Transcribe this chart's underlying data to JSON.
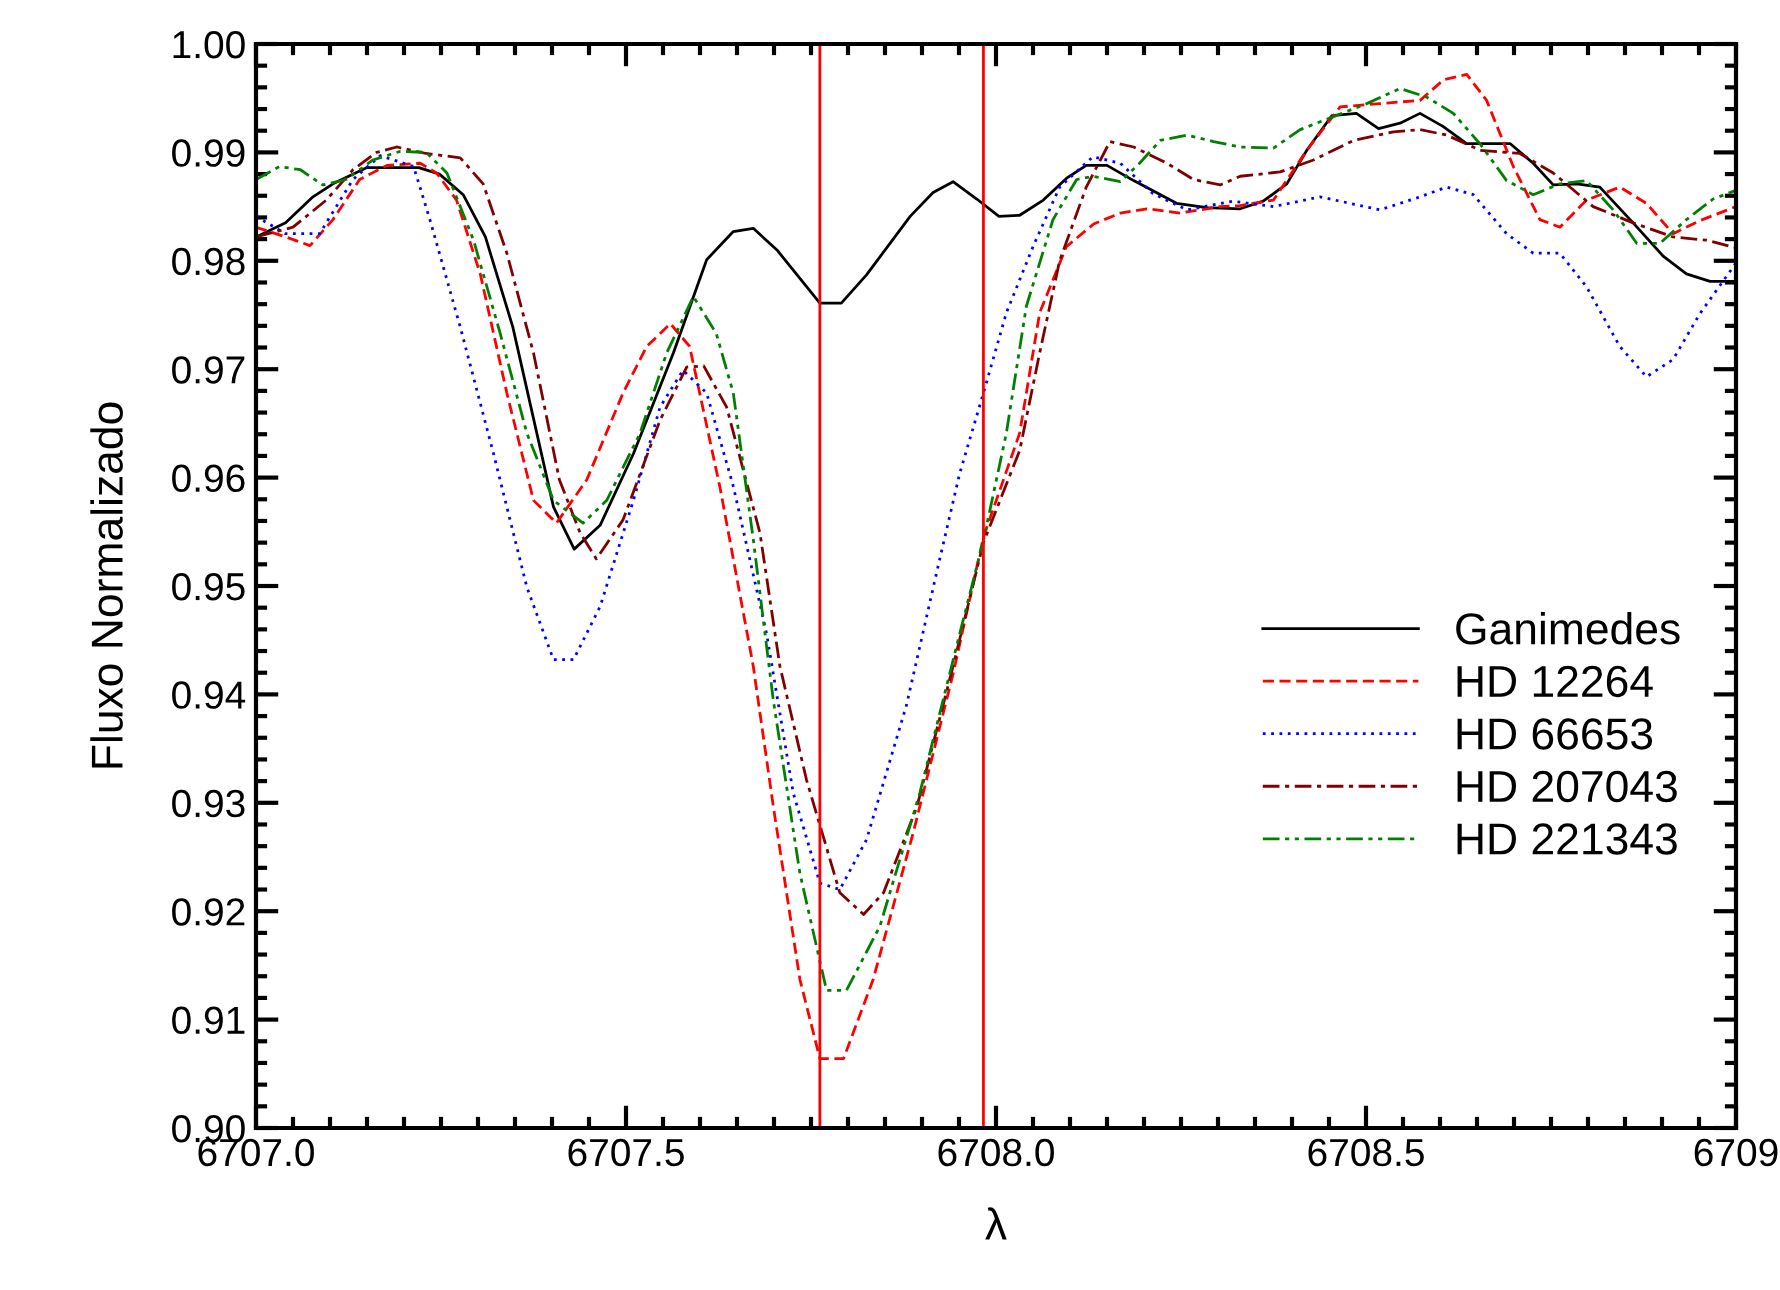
{
  "chart_data": {
    "type": "line",
    "xlabel": "λ",
    "ylabel": "Fluxo Normalizado",
    "xlim": [
      6707.0,
      6709.0
    ],
    "ylim": [
      0.9,
      1.0
    ],
    "xticks": [
      {
        "value": 6707.0,
        "label": "6707.0"
      },
      {
        "value": 6707.5,
        "label": "6707.5"
      },
      {
        "value": 6708.0,
        "label": "6708.0"
      },
      {
        "value": 6708.5,
        "label": "6708.5"
      },
      {
        "value": 6709.0,
        "label": "6709"
      }
    ],
    "yticks": [
      {
        "value": 0.9,
        "label": "0.90"
      },
      {
        "value": 0.91,
        "label": "0.91"
      },
      {
        "value": 0.92,
        "label": "0.92"
      },
      {
        "value": 0.93,
        "label": "0.93"
      },
      {
        "value": 0.94,
        "label": "0.94"
      },
      {
        "value": 0.95,
        "label": "0.95"
      },
      {
        "value": 0.96,
        "label": "0.96"
      },
      {
        "value": 0.97,
        "label": "0.97"
      },
      {
        "value": 0.98,
        "label": "0.98"
      },
      {
        "value": 0.99,
        "label": "0.99"
      },
      {
        "value": 1.0,
        "label": "1.00"
      }
    ],
    "grid": false,
    "legend": "right",
    "marker": "none",
    "ref_lines": [
      {
        "axis": "x",
        "value": 6707.762,
        "color": "#ff0000"
      },
      {
        "axis": "x",
        "value": 6707.983,
        "color": "#ff0000"
      }
    ],
    "series": [
      {
        "name": "Ganimedes",
        "color": "#000000",
        "line_style": "solid",
        "x": [
          6707.0,
          6707.04,
          6707.077,
          6707.104,
          6707.15,
          6707.22,
          6707.248,
          6707.28,
          6707.31,
          6707.347,
          6707.402,
          6707.43,
          6707.465,
          6707.51,
          6707.564,
          6707.609,
          6707.645,
          6707.672,
          6707.704,
          6707.762,
          6707.791,
          6707.825,
          6707.884,
          6707.915,
          6707.942,
          6707.974,
          6708.004,
          6708.032,
          6708.064,
          6708.095,
          6708.122,
          6708.15,
          6708.186,
          6708.244,
          6708.285,
          6708.33,
          6708.361,
          6708.393,
          6708.42,
          6708.454,
          6708.487,
          6708.517,
          6708.546,
          6708.573,
          6708.604,
          6708.636,
          6708.695,
          6708.726,
          6708.753,
          6708.785,
          6708.816,
          6708.861,
          6708.902,
          6708.933,
          6708.965,
          6709.0
        ],
        "values": [
          0.9822,
          0.9835,
          0.9859,
          0.9871,
          0.9886,
          0.9886,
          0.988,
          0.9861,
          0.9822,
          0.9739,
          0.9573,
          0.9534,
          0.9556,
          0.9622,
          0.9715,
          0.9801,
          0.9827,
          0.983,
          0.981,
          0.9761,
          0.9761,
          0.9787,
          0.9841,
          0.9863,
          0.9873,
          0.9857,
          0.9841,
          0.9842,
          0.9856,
          0.9876,
          0.9888,
          0.9888,
          0.9874,
          0.9853,
          0.9849,
          0.9848,
          0.9855,
          0.9871,
          0.9902,
          0.9934,
          0.9936,
          0.9922,
          0.9927,
          0.9936,
          0.9924,
          0.9908,
          0.9908,
          0.989,
          0.987,
          0.9871,
          0.9868,
          0.9835,
          0.9804,
          0.9788,
          0.9781,
          0.9781
        ]
      },
      {
        "name": "HD 12264",
        "color": "#ff0000",
        "line_style": "dashed",
        "x": [
          6707.0,
          6707.04,
          6707.073,
          6707.104,
          6707.14,
          6707.177,
          6707.222,
          6707.244,
          6707.271,
          6707.303,
          6707.339,
          6707.375,
          6707.406,
          6707.447,
          6707.496,
          6707.528,
          6707.56,
          6707.586,
          6707.627,
          6707.672,
          6707.699,
          6707.735,
          6707.762,
          6707.794,
          6707.834,
          6707.888,
          6707.942,
          6707.983,
          6708.032,
          6708.059,
          6708.095,
          6708.132,
          6708.168,
          6708.204,
          6708.249,
          6708.303,
          6708.33,
          6708.375,
          6708.42,
          6708.465,
          6708.519,
          6708.573,
          6708.605,
          6708.636,
          6708.663,
          6708.699,
          6708.735,
          6708.762,
          6708.798,
          6708.843,
          6708.879,
          6708.915,
          6708.951,
          6709.0
        ],
        "values": [
          0.9831,
          0.9822,
          0.9814,
          0.9838,
          0.9875,
          0.9888,
          0.989,
          0.9881,
          0.9856,
          0.9788,
          0.9678,
          0.9579,
          0.9558,
          0.9598,
          0.9678,
          0.9721,
          0.9742,
          0.9721,
          0.9591,
          0.9426,
          0.9297,
          0.9137,
          0.9064,
          0.9064,
          0.9137,
          0.9272,
          0.9419,
          0.9545,
          0.9641,
          0.9752,
          0.9813,
          0.9834,
          0.9844,
          0.9848,
          0.9844,
          0.985,
          0.9851,
          0.9856,
          0.9902,
          0.9942,
          0.9945,
          0.9948,
          0.9967,
          0.9972,
          0.9948,
          0.9887,
          0.9838,
          0.9831,
          0.9856,
          0.9868,
          0.9853,
          0.9825,
          0.9837,
          0.985
        ]
      },
      {
        "name": "HD 66653",
        "color": "#0000ff",
        "line_style": "dotted",
        "x": [
          6707.0,
          6707.04,
          6707.086,
          6707.131,
          6707.168,
          6707.213,
          6707.235,
          6707.276,
          6707.321,
          6707.366,
          6707.402,
          6707.429,
          6707.465,
          6707.51,
          6707.546,
          6707.577,
          6707.609,
          6707.645,
          6707.69,
          6707.726,
          6707.762,
          6707.789,
          6707.825,
          6707.879,
          6707.924,
          6707.951,
          6707.983,
          6708.014,
          6708.05,
          6708.086,
          6708.131,
          6708.168,
          6708.212,
          6708.258,
          6708.32,
          6708.375,
          6708.438,
          6708.519,
          6708.573,
          6708.609,
          6708.645,
          6708.69,
          6708.726,
          6708.762,
          6708.798,
          6708.843,
          6708.879,
          6708.915,
          6708.951,
          6709.0
        ],
        "values": [
          0.9841,
          0.9825,
          0.9825,
          0.9875,
          0.9897,
          0.9887,
          0.9838,
          0.9739,
          0.9622,
          0.9499,
          0.9432,
          0.9432,
          0.9481,
          0.9579,
          0.9665,
          0.9699,
          0.9678,
          0.9592,
          0.9456,
          0.9309,
          0.9226,
          0.922,
          0.9266,
          0.939,
          0.9525,
          0.9604,
          0.9678,
          0.9752,
          0.9813,
          0.9868,
          0.9896,
          0.989,
          0.9862,
          0.9847,
          0.9855,
          0.985,
          0.9859,
          0.9847,
          0.9859,
          0.9868,
          0.9861,
          0.9825,
          0.9807,
          0.9807,
          0.9776,
          0.9721,
          0.9693,
          0.9709,
          0.9751,
          0.9798
        ]
      },
      {
        "name": "HD 207043",
        "color": "#800000",
        "line_style": "dashdot",
        "x": [
          6707.0,
          6707.05,
          6707.095,
          6707.131,
          6707.163,
          6707.19,
          6707.23,
          6707.276,
          6707.307,
          6707.339,
          6707.375,
          6707.41,
          6707.438,
          6707.46,
          6707.496,
          6707.546,
          6707.582,
          6707.605,
          6707.636,
          6707.681,
          6707.708,
          6707.744,
          6707.789,
          6707.821,
          6707.848,
          6707.893,
          6707.942,
          6707.983,
          6708.032,
          6708.059,
          6708.086,
          6708.122,
          6708.154,
          6708.186,
          6708.231,
          6708.267,
          6708.303,
          6708.33,
          6708.384,
          6708.429,
          6708.483,
          6708.537,
          6708.573,
          6708.609,
          6708.654,
          6708.708,
          6708.753,
          6708.807,
          6708.861,
          6708.915,
          6708.96,
          6709.0
        ],
        "values": [
          0.9822,
          0.9831,
          0.9856,
          0.9884,
          0.99,
          0.9905,
          0.9899,
          0.9895,
          0.9871,
          0.9807,
          0.9715,
          0.9598,
          0.9549,
          0.9525,
          0.9561,
          0.9653,
          0.9702,
          0.9703,
          0.9665,
          0.9549,
          0.9426,
          0.9321,
          0.9217,
          0.9197,
          0.9217,
          0.9296,
          0.9426,
          0.954,
          0.9625,
          0.9715,
          0.98,
          0.9868,
          0.991,
          0.9905,
          0.989,
          0.9875,
          0.987,
          0.9878,
          0.9882,
          0.9893,
          0.9911,
          0.9919,
          0.9921,
          0.9916,
          0.9902,
          0.9899,
          0.9881,
          0.985,
          0.9835,
          0.9822,
          0.9819,
          0.9812
        ]
      },
      {
        "name": "HD 221343",
        "color": "#008000",
        "line_style": "dashdotdot",
        "x": [
          6707.0,
          6707.032,
          6707.06,
          6707.09,
          6707.122,
          6707.158,
          6707.195,
          6707.23,
          6707.258,
          6707.294,
          6707.33,
          6707.366,
          6707.402,
          6707.442,
          6707.474,
          6707.519,
          6707.555,
          6707.591,
          6707.622,
          6707.645,
          6707.672,
          6707.699,
          6707.735,
          6707.771,
          6707.798,
          6707.843,
          6707.897,
          6707.951,
          6707.983,
          6708.014,
          6708.041,
          6708.077,
          6708.109,
          6708.131,
          6708.168,
          6708.194,
          6708.222,
          6708.258,
          6708.294,
          6708.33,
          6708.375,
          6708.411,
          6708.456,
          6708.501,
          6708.546,
          6708.582,
          6708.618,
          6708.654,
          6708.69,
          6708.726,
          6708.762,
          6708.798,
          6708.834,
          6708.866,
          6708.897,
          6708.933,
          6708.969,
          6709.0
        ],
        "values": [
          0.9875,
          0.9887,
          0.9884,
          0.987,
          0.9875,
          0.9893,
          0.9901,
          0.99,
          0.9881,
          0.9819,
          0.9733,
          0.9641,
          0.9579,
          0.9558,
          0.9579,
          0.9641,
          0.9715,
          0.9767,
          0.9733,
          0.9678,
          0.9543,
          0.9395,
          0.9235,
          0.9127,
          0.9127,
          0.9186,
          0.9309,
          0.9456,
          0.9542,
          0.9641,
          0.9758,
          0.9838,
          0.9875,
          0.9878,
          0.9873,
          0.989,
          0.9911,
          0.9916,
          0.991,
          0.9905,
          0.9904,
          0.9921,
          0.9933,
          0.9945,
          0.9959,
          0.9951,
          0.9936,
          0.9908,
          0.9874,
          0.9861,
          0.9871,
          0.9874,
          0.9847,
          0.9816,
          0.9816,
          0.9838,
          0.9857,
          0.9865
        ]
      }
    ]
  }
}
